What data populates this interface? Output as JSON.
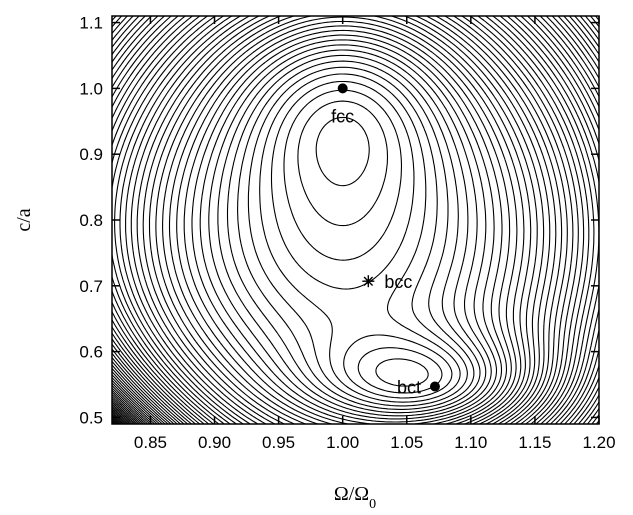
{
  "chart_data": {
    "type": "contour",
    "xlabel": "Ω/Ω",
    "xlabel_sub": "0",
    "ylabel": "c/a",
    "xlim": [
      0.82,
      1.2
    ],
    "ylim": [
      0.49,
      1.11
    ],
    "x_ticks": [
      0.85,
      0.9,
      0.95,
      1.0,
      1.05,
      1.1,
      1.15,
      1.2
    ],
    "x_tick_labels": [
      "0.85",
      "0.90",
      "0.95",
      "1.00",
      "1.05",
      "1.10",
      "1.15",
      "1.20"
    ],
    "y_ticks": [
      0.5,
      0.6,
      0.7,
      0.8,
      0.9,
      1.0,
      1.1
    ],
    "y_tick_labels": [
      "0.5",
      "0.6",
      "0.7",
      "0.8",
      "0.9",
      "1.0",
      "1.1"
    ],
    "points": [
      {
        "label": "fcc",
        "x": 1.0,
        "y": 1.0,
        "marker": "dot"
      },
      {
        "label": "bcc",
        "x": 1.02,
        "y": 0.707,
        "marker": "star"
      },
      {
        "label": "bct",
        "x": 1.072,
        "y": 0.547,
        "marker": "dot"
      }
    ],
    "grid": false,
    "legend": "none"
  }
}
